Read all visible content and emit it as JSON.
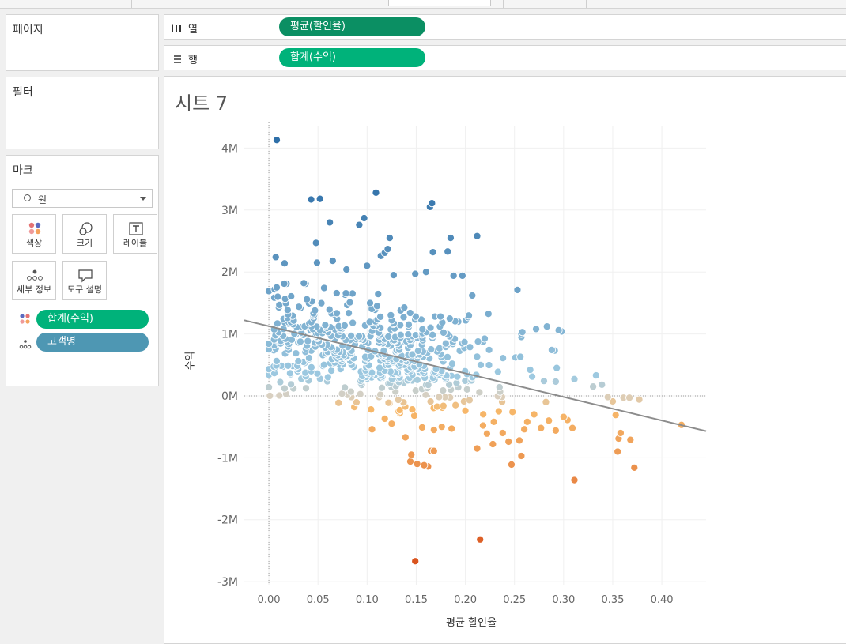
{
  "shelves": {
    "columns": {
      "label": "열",
      "pill": "평균(할인율)"
    },
    "rows": {
      "label": "행",
      "pill": "합계(수익)"
    }
  },
  "panels": {
    "pages": "페이지",
    "filters": "필터",
    "marks": "마크"
  },
  "marks": {
    "type": "원",
    "buttons": {
      "color": "색상",
      "size": "크기",
      "label": "레이블",
      "detail": "세부 정보",
      "tooltip": "도구 설명"
    },
    "fields": [
      {
        "label": "합계(수익)",
        "kind": "color"
      },
      {
        "label": "고객명",
        "kind": "detail"
      }
    ]
  },
  "sheet": {
    "title": "시트 7"
  },
  "colors": {
    "positive_high": "#2e6fa8",
    "positive_low": "#9ecae1",
    "neutral": "#d9d0c1",
    "negative_low": "#f7b96b",
    "negative_high": "#d9541e",
    "trend": "#8c8c8c",
    "pill_green": "#00b27a",
    "pill_dark": "#0b8f63",
    "pill_blue": "#4e97b3"
  },
  "chart_data": {
    "type": "scatter",
    "xlabel": "평균 할인율",
    "ylabel": "수익",
    "xlim": [
      -0.025,
      0.445
    ],
    "ylim": [
      -3.05,
      4.35
    ],
    "x_ticks": [
      "0.00",
      "0.05",
      "0.10",
      "0.15",
      "0.20",
      "0.25",
      "0.30",
      "0.35",
      "0.40"
    ],
    "y_ticks": [
      {
        "v": 4,
        "label": "4M"
      },
      {
        "v": 3,
        "label": "3M"
      },
      {
        "v": 2,
        "label": "2M"
      },
      {
        "v": 1,
        "label": "1M"
      },
      {
        "v": 0,
        "label": "0M"
      },
      {
        "v": -1,
        "label": "-1M"
      },
      {
        "v": -2,
        "label": "-2M"
      },
      {
        "v": -3,
        "label": "-3M"
      }
    ],
    "trend_line": {
      "x": [
        -0.025,
        0.445
      ],
      "y": [
        1.22,
        -0.57
      ]
    },
    "y_unit": "M",
    "points": [
      {
        "x": 0.008,
        "y": 4.13
      },
      {
        "x": 0.109,
        "y": 3.28
      },
      {
        "x": 0.043,
        "y": 3.17
      },
      {
        "x": 0.052,
        "y": 3.18
      },
      {
        "x": 0.166,
        "y": 3.11
      },
      {
        "x": 0.164,
        "y": 3.05
      },
      {
        "x": 0.097,
        "y": 2.87
      },
      {
        "x": 0.092,
        "y": 2.76
      },
      {
        "x": 0.062,
        "y": 2.8
      },
      {
        "x": 0.212,
        "y": 2.58
      },
      {
        "x": 0.185,
        "y": 2.55
      },
      {
        "x": 0.123,
        "y": 2.55
      },
      {
        "x": 0.048,
        "y": 2.47
      },
      {
        "x": 0.121,
        "y": 2.37
      },
      {
        "x": 0.118,
        "y": 2.31
      },
      {
        "x": 0.114,
        "y": 2.26
      },
      {
        "x": 0.167,
        "y": 2.32
      },
      {
        "x": 0.182,
        "y": 2.33
      },
      {
        "x": 0.007,
        "y": 2.24
      },
      {
        "x": 0.016,
        "y": 2.14
      },
      {
        "x": 0.049,
        "y": 2.15
      },
      {
        "x": 0.065,
        "y": 2.18
      },
      {
        "x": 0.1,
        "y": 2.1
      },
      {
        "x": 0.16,
        "y": 2.0
      },
      {
        "x": 0.149,
        "y": 1.97
      },
      {
        "x": 0.127,
        "y": 1.95
      },
      {
        "x": 0.079,
        "y": 2.04
      },
      {
        "x": 0.188,
        "y": 1.94
      },
      {
        "x": 0.197,
        "y": 1.94
      },
      {
        "x": 0.008,
        "y": 1.75
      },
      {
        "x": 0.0,
        "y": 1.69
      },
      {
        "x": 0.253,
        "y": 1.71
      },
      {
        "x": 0.207,
        "y": 1.62
      },
      {
        "x": 0.009,
        "y": 1.6
      },
      {
        "x": 0.018,
        "y": 1.81
      },
      {
        "x": 0.295,
        "y": 1.06
      },
      {
        "x": 0.298,
        "y": 1.04
      },
      {
        "x": 0.283,
        "y": 1.12
      },
      {
        "x": 0.272,
        "y": 1.08
      },
      {
        "x": 0.257,
        "y": 1.0
      },
      {
        "x": 0.257,
        "y": 0.95
      },
      {
        "x": 0.258,
        "y": 1.03
      },
      {
        "x": 0.288,
        "y": 0.74
      },
      {
        "x": 0.291,
        "y": 0.73
      },
      {
        "x": 0.256,
        "y": 0.63
      },
      {
        "x": 0.251,
        "y": 0.62
      },
      {
        "x": 0.293,
        "y": 0.45
      },
      {
        "x": 0.266,
        "y": 0.42
      },
      {
        "x": 0.268,
        "y": 0.31
      },
      {
        "x": 0.28,
        "y": 0.24
      },
      {
        "x": 0.311,
        "y": 0.27
      },
      {
        "x": 0.333,
        "y": 0.33
      },
      {
        "x": 0.339,
        "y": 0.18
      },
      {
        "x": 0.33,
        "y": 0.15
      },
      {
        "x": 0.292,
        "y": 0.23
      },
      {
        "x": 0.0,
        "y": 0.84
      },
      {
        "x": 0.0,
        "y": 0.75
      },
      {
        "x": 0.0,
        "y": 0.43
      },
      {
        "x": 0.0,
        "y": 0.34
      },
      {
        "x": 0.0,
        "y": 0.14
      },
      {
        "x": 0.001,
        "y": 0.0
      },
      {
        "x": 0.012,
        "y": 0.48
      },
      {
        "x": 0.016,
        "y": 0.12
      },
      {
        "x": 0.025,
        "y": 0.12
      },
      {
        "x": 0.015,
        "y": 1.08
      },
      {
        "x": 0.03,
        "y": 0.56
      },
      {
        "x": 0.345,
        "y": -0.02
      },
      {
        "x": 0.35,
        "y": -0.09
      },
      {
        "x": 0.353,
        "y": -0.31
      },
      {
        "x": 0.358,
        "y": -0.6
      },
      {
        "x": 0.356,
        "y": -0.69
      },
      {
        "x": 0.355,
        "y": -0.9
      },
      {
        "x": 0.368,
        "y": -0.71
      },
      {
        "x": 0.372,
        "y": -1.16
      },
      {
        "x": 0.361,
        "y": -0.03
      },
      {
        "x": 0.367,
        "y": -0.03
      },
      {
        "x": 0.377,
        "y": -0.06
      },
      {
        "x": 0.42,
        "y": -0.47
      },
      {
        "x": 0.311,
        "y": -1.36
      },
      {
        "x": 0.309,
        "y": -0.52
      },
      {
        "x": 0.304,
        "y": -0.39
      },
      {
        "x": 0.292,
        "y": -0.56
      },
      {
        "x": 0.285,
        "y": -0.4
      },
      {
        "x": 0.277,
        "y": -0.52
      },
      {
        "x": 0.26,
        "y": -0.54
      },
      {
        "x": 0.257,
        "y": -0.97
      },
      {
        "x": 0.255,
        "y": -0.72
      },
      {
        "x": 0.247,
        "y": -1.11
      },
      {
        "x": 0.244,
        "y": -0.74
      },
      {
        "x": 0.238,
        "y": -0.6
      },
      {
        "x": 0.228,
        "y": -0.78
      },
      {
        "x": 0.222,
        "y": -0.61
      },
      {
        "x": 0.212,
        "y": -0.85
      },
      {
        "x": 0.215,
        "y": -2.32
      },
      {
        "x": 0.149,
        "y": -2.67
      },
      {
        "x": 0.151,
        "y": -1.1
      },
      {
        "x": 0.145,
        "y": -0.95
      },
      {
        "x": 0.144,
        "y": -1.06
      },
      {
        "x": 0.139,
        "y": -0.67
      },
      {
        "x": 0.158,
        "y": -1.12
      },
      {
        "x": 0.162,
        "y": -1.14
      },
      {
        "x": 0.165,
        "y": -0.89
      },
      {
        "x": 0.168,
        "y": -0.89
      },
      {
        "x": 0.105,
        "y": -0.54
      },
      {
        "x": 0.125,
        "y": -0.45
      },
      {
        "x": 0.148,
        "y": -0.32
      },
      {
        "x": 0.146,
        "y": -0.22
      },
      {
        "x": 0.168,
        "y": -0.55
      },
      {
        "x": 0.186,
        "y": -0.53
      },
      {
        "x": 0.176,
        "y": -0.5
      },
      {
        "x": 0.156,
        "y": -0.51
      },
      {
        "x": 0.084,
        "y": -0.02
      },
      {
        "x": 0.087,
        "y": -0.18
      },
      {
        "x": 0.104,
        "y": -0.22
      },
      {
        "x": 0.118,
        "y": -0.37
      },
      {
        "x": 0.132,
        "y": -0.25
      },
      {
        "x": 0.19,
        "y": -0.15
      },
      {
        "x": 0.2,
        "y": -0.24
      },
      {
        "x": 0.218,
        "y": -0.48
      },
      {
        "x": 0.229,
        "y": -0.42
      },
      {
        "x": 0.234,
        "y": -0.25
      },
      {
        "x": 0.248,
        "y": -0.26
      },
      {
        "x": 0.263,
        "y": -0.42
      },
      {
        "x": 0.27,
        "y": -0.3
      },
      {
        "x": 0.282,
        "y": -0.1
      },
      {
        "x": 0.3,
        "y": -0.34
      }
    ],
    "cluster_count": 520
  }
}
